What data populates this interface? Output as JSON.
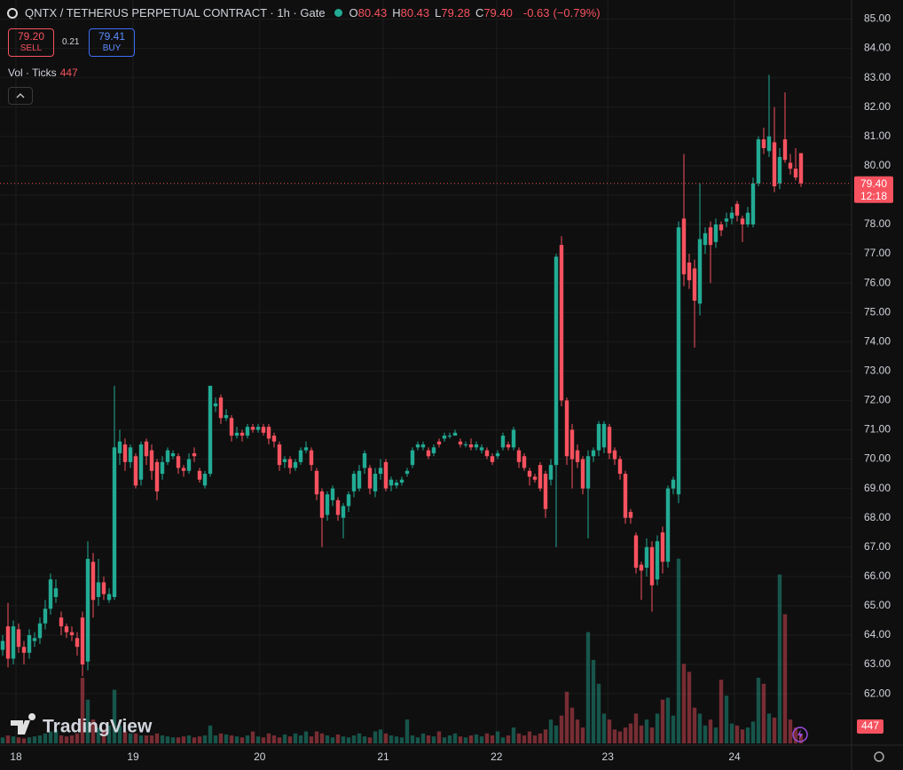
{
  "chart_data": {
    "type": "candlestick",
    "title": "QNTX / TETHERUS PERPETUAL CONTRACT · 1h · Gate",
    "legend_ohlc": [
      {
        "name": "O",
        "value": 80.43,
        "label": "80.43"
      },
      {
        "name": "H",
        "value": 80.43,
        "label": "80.43"
      },
      {
        "name": "L",
        "value": 79.28,
        "label": "79.28"
      },
      {
        "name": "C",
        "value": 79.4,
        "label": "79.40"
      }
    ],
    "change": {
      "value": -0.63,
      "label": "-0.63"
    },
    "change_pct": {
      "value": -0.79,
      "label": "(−0.79%)"
    },
    "sell": {
      "value": 79.2,
      "label": "79.20",
      "text": "SELL"
    },
    "spread": 0.21,
    "buy": {
      "value": 79.41,
      "text": "BUY"
    },
    "volume_title": "Vol · Ticks",
    "watermark": "TradingView",
    "last_price": {
      "value": 79.4,
      "label": "79.40",
      "countdown": "12:18"
    },
    "up_color": "#22ab94",
    "down_color": "#f7525f",
    "grid": true,
    "x": [
      -3,
      -2,
      -1,
      0,
      1,
      2,
      3,
      4,
      5,
      6,
      7,
      8,
      9,
      10,
      11,
      12,
      13,
      14,
      15,
      16,
      17,
      18,
      19,
      20,
      21,
      22,
      23,
      24,
      25,
      26,
      27,
      28,
      29,
      30,
      31,
      32,
      33,
      34,
      35,
      36,
      37,
      38,
      39,
      40,
      41,
      42,
      43,
      44,
      45,
      46,
      47,
      48,
      49,
      50,
      51,
      52,
      53,
      54,
      55,
      56,
      57,
      58,
      59,
      60,
      61,
      62,
      63,
      64,
      65,
      66,
      67,
      68,
      69,
      70,
      71,
      72,
      73,
      74,
      75,
      76,
      77,
      78,
      79,
      80,
      81,
      82,
      83,
      84,
      85,
      86,
      87,
      88,
      89,
      90,
      91,
      92,
      93,
      94,
      95,
      96,
      97,
      98,
      99,
      100,
      101,
      102,
      103,
      104,
      105,
      106,
      107,
      108,
      109,
      110,
      111,
      112,
      113,
      114,
      115,
      116,
      117,
      118,
      119,
      120,
      121,
      122,
      123,
      124,
      125,
      126,
      127,
      128,
      129,
      130,
      131,
      132,
      133,
      134,
      135,
      136,
      137,
      138,
      139,
      140,
      141,
      142,
      143,
      144,
      145,
      146,
      147
    ],
    "open": [
      63.5,
      64.3,
      63.2,
      64.2,
      63.6,
      63.4,
      63.8,
      63.9,
      64.4,
      64.9,
      65.3,
      64.6,
      64.3,
      64.1,
      63.9,
      64.6,
      63.1,
      66.5,
      65.3,
      65.8,
      65.2,
      65.3,
      70.2,
      70.5,
      69.9,
      70.1,
      69.3,
      70.6,
      70.3,
      69.9,
      69.5,
      69.9,
      70.1,
      70.1,
      69.7,
      69.6,
      70.2,
      69.6,
      69.1,
      69.5,
      71.8,
      72.1,
      71.4,
      71.4,
      70.8,
      70.9,
      70.8,
      71.1,
      71.0,
      71.1,
      71.1,
      70.8,
      70.5,
      69.9,
      70.0,
      69.7,
      69.9,
      70.3,
      70.3,
      69.6,
      68.9,
      68.1,
      68.6,
      68.6,
      68.0,
      68.4,
      68.9,
      69.0,
      69.7,
      69.7,
      68.9,
      69.5,
      69.9,
      69.1,
      69.1,
      69.2,
      69.5,
      69.8,
      70.4,
      70.4,
      70.3,
      70.2,
      70.6,
      70.7,
      70.8,
      70.8,
      70.6,
      70.5,
      70.5,
      70.4,
      70.3,
      70.3,
      70.1,
      70.1,
      70.4,
      70.5,
      70.4,
      70.3,
      70.1,
      69.6,
      69.4,
      69.8,
      69.5,
      69.3,
      69.8,
      77.3,
      72.0,
      71.0,
      70.3,
      70.0,
      69.0,
      70.1,
      70.3,
      70.4,
      71.1,
      70.3,
      70.0,
      69.5,
      68.2,
      67.4,
      66.4,
      66.3,
      67.0,
      65.9,
      67.5,
      66.5,
      69.0,
      68.8,
      78.2,
      76.7,
      76.5,
      75.3,
      77.3,
      77.9,
      77.4,
      78.0,
      78.1,
      78.2,
      78.7,
      78.2,
      78.0,
      78.0,
      79.4,
      80.9,
      80.5,
      80.8,
      79.4,
      80.9,
      80.1,
      79.9,
      80.43
    ],
    "high": [
      64.0,
      65.1,
      64.5,
      64.4,
      63.8,
      64.2,
      64.1,
      64.6,
      65.2,
      66.1,
      65.9,
      64.8,
      64.4,
      64.3,
      64.1,
      64.8,
      67.2,
      66.8,
      66.6,
      66.0,
      65.6,
      72.5,
      71.0,
      70.7,
      70.5,
      70.2,
      70.6,
      70.7,
      70.5,
      70.0,
      70.1,
      70.4,
      70.3,
      70.2,
      69.8,
      70.2,
      70.4,
      69.7,
      69.6,
      72.5,
      72.1,
      72.2,
      71.7,
      71.5,
      71.1,
      71.0,
      71.2,
      71.2,
      71.2,
      71.2,
      71.2,
      70.9,
      70.6,
      70.1,
      70.1,
      70.0,
      70.4,
      70.6,
      70.4,
      69.7,
      69.0,
      68.9,
      69.1,
      68.7,
      68.5,
      68.9,
      69.6,
      69.8,
      70.3,
      69.8,
      69.7,
      70.0,
      70.0,
      69.4,
      69.3,
      69.4,
      69.7,
      70.4,
      70.6,
      70.6,
      70.4,
      70.5,
      70.7,
      70.9,
      70.9,
      71.0,
      70.7,
      70.6,
      70.7,
      70.6,
      70.5,
      70.4,
      70.2,
      70.3,
      70.9,
      70.6,
      71.1,
      70.4,
      70.2,
      69.7,
      69.5,
      69.9,
      69.6,
      70.0,
      77.0,
      77.6,
      72.1,
      71.2,
      70.5,
      70.1,
      70.3,
      70.4,
      71.3,
      71.3,
      71.2,
      70.4,
      70.1,
      69.6,
      68.3,
      67.5,
      66.5,
      67.3,
      67.2,
      67.4,
      67.7,
      69.1,
      69.4,
      78.1,
      80.4,
      77.0,
      76.8,
      79.4,
      77.9,
      78.1,
      78.2,
      78.1,
      78.4,
      78.6,
      78.8,
      78.3,
      78.6,
      79.6,
      81.0,
      81.3,
      83.1,
      82.0,
      80.6,
      82.5,
      80.4,
      80.6,
      80.43
    ],
    "low": [
      63.3,
      62.9,
      63.0,
      63.4,
      63.0,
      63.2,
      63.6,
      63.7,
      64.2,
      64.7,
      65.1,
      64.0,
      63.9,
      63.8,
      63.3,
      62.6,
      62.8,
      64.6,
      65.0,
      65.2,
      65.1,
      65.2,
      69.8,
      69.6,
      69.7,
      69.0,
      69.1,
      69.8,
      69.3,
      68.6,
      69.3,
      69.8,
      70.0,
      69.5,
      69.4,
      69.5,
      69.9,
      69.2,
      69.0,
      69.4,
      71.6,
      71.2,
      71.3,
      70.6,
      70.7,
      70.6,
      70.7,
      70.9,
      70.9,
      70.8,
      70.5,
      70.4,
      69.6,
      69.7,
      69.5,
      69.6,
      69.8,
      70.2,
      69.6,
      68.6,
      67.0,
      67.9,
      68.4,
      67.9,
      67.3,
      68.2,
      68.7,
      68.9,
      69.5,
      68.8,
      68.7,
      69.3,
      68.9,
      68.9,
      69.0,
      69.1,
      69.4,
      69.7,
      70.3,
      70.3,
      70.0,
      70.1,
      70.4,
      70.6,
      70.7,
      70.8,
      70.4,
      70.4,
      70.3,
      70.3,
      70.2,
      70.0,
      69.8,
      70.0,
      70.3,
      70.3,
      70.3,
      69.7,
      69.6,
      69.1,
      69.2,
      68.9,
      68.0,
      69.1,
      67.0,
      71.8,
      69.8,
      69.0,
      69.7,
      68.8,
      67.3,
      69.9,
      70.1,
      70.2,
      70.0,
      69.8,
      69.3,
      67.8,
      67.8,
      66.1,
      65.2,
      66.0,
      64.8,
      65.7,
      66.1,
      66.3,
      68.8,
      68.5,
      75.9,
      75.8,
      73.8,
      74.9,
      77.0,
      76.0,
      77.2,
      77.6,
      77.9,
      78.0,
      78.1,
      77.4,
      77.9,
      77.9,
      79.3,
      80.4,
      80.3,
      79.1,
      79.2,
      80.1,
      79.7,
      79.5,
      79.28
    ],
    "close": [
      63.8,
      63.2,
      64.3,
      63.6,
      63.4,
      64.0,
      63.9,
      64.4,
      64.9,
      65.9,
      65.6,
      64.3,
      64.1,
      64.0,
      63.6,
      63.0,
      66.6,
      65.2,
      65.8,
      65.4,
      65.4,
      70.4,
      70.6,
      69.9,
      70.4,
      69.1,
      70.5,
      70.1,
      69.6,
      68.9,
      69.9,
      70.3,
      70.2,
      69.7,
      69.6,
      70.0,
      70.1,
      69.3,
      69.5,
      72.5,
      71.9,
      71.4,
      71.5,
      70.8,
      70.9,
      70.8,
      71.1,
      71.0,
      71.1,
      70.9,
      70.7,
      70.6,
      69.8,
      70.0,
      69.7,
      69.9,
      70.3,
      70.4,
      69.8,
      68.8,
      68.0,
      68.8,
      69.0,
      68.1,
      68.4,
      68.8,
      69.5,
      69.6,
      70.2,
      69.0,
      69.5,
      69.7,
      69.0,
      69.3,
      69.2,
      69.3,
      69.6,
      70.3,
      70.5,
      70.5,
      70.1,
      70.4,
      70.5,
      70.8,
      70.8,
      70.9,
      70.5,
      70.5,
      70.4,
      70.5,
      70.4,
      70.1,
      69.9,
      70.2,
      70.8,
      70.4,
      71.0,
      69.9,
      69.7,
      69.4,
      69.3,
      69.0,
      68.3,
      69.8,
      76.9,
      72.0,
      70.1,
      70.0,
      69.9,
      69.0,
      70.1,
      70.3,
      71.2,
      71.2,
      70.2,
      70.0,
      69.5,
      68.0,
      68.0,
      66.3,
      66.2,
      67.0,
      65.7,
      67.2,
      66.5,
      69.0,
      69.3,
      77.9,
      76.3,
      76.1,
      75.4,
      77.5,
      77.7,
      77.3,
      78.0,
      77.8,
      78.2,
      78.4,
      78.3,
      78.0,
      78.4,
      79.4,
      80.9,
      80.6,
      81.0,
      79.3,
      80.3,
      80.2,
      79.9,
      79.6,
      79.4
    ],
    "volume": [
      300,
      400,
      350,
      300,
      250,
      300,
      350,
      400,
      500,
      600,
      700,
      400,
      350,
      400,
      500,
      3300,
      2200,
      1200,
      800,
      700,
      900,
      2700,
      900,
      600,
      500,
      500,
      400,
      400,
      400,
      500,
      400,
      350,
      300,
      300,
      350,
      400,
      300,
      350,
      400,
      900,
      400,
      500,
      450,
      400,
      350,
      300,
      400,
      600,
      350,
      300,
      500,
      400,
      300,
      450,
      350,
      500,
      400,
      600,
      350,
      600,
      500,
      400,
      300,
      450,
      350,
      300,
      400,
      500,
      350,
      300,
      600,
      700,
      500,
      400,
      350,
      300,
      1200,
      400,
      300,
      500,
      400,
      350,
      600,
      300,
      400,
      500,
      350,
      300,
      400,
      450,
      350,
      500,
      400,
      600,
      300,
      400,
      800,
      500,
      400,
      600,
      400,
      500,
      700,
      1200,
      900,
      1400,
      2600,
      1800,
      1200,
      800,
      5600,
      4200,
      3000,
      1500,
      1200,
      700,
      600,
      800,
      1000,
      1500,
      900,
      1200,
      800,
      1500,
      2200,
      2300,
      1400,
      9300,
      4000,
      3600,
      1800,
      1500,
      900,
      1200,
      800,
      3200,
      2400,
      1000,
      900,
      700,
      800,
      1100,
      3300,
      3000,
      1500,
      1300,
      8500,
      6500,
      1200,
      800,
      447
    ],
    "volume_ylim": [
      0,
      10000
    ],
    "xlim": [
      -3.5,
      156.5
    ],
    "xticks": [
      {
        "value": -0.5,
        "label": "18"
      },
      {
        "value": 21.5,
        "label": "19"
      },
      {
        "value": 45.3,
        "label": "20"
      },
      {
        "value": 68.5,
        "label": "21"
      },
      {
        "value": 89.8,
        "label": "22"
      },
      {
        "value": 110.7,
        "label": "23"
      },
      {
        "value": 134.5,
        "label": "24"
      }
    ],
    "ylim": [
      60.25,
      85.65
    ],
    "yticks": [
      {
        "value": 62,
        "label": "62.00"
      },
      {
        "value": 63,
        "label": "63.00"
      },
      {
        "value": 64,
        "label": "64.00"
      },
      {
        "value": 65,
        "label": "65.00"
      },
      {
        "value": 66,
        "label": "66.00"
      },
      {
        "value": 67,
        "label": "67.00"
      },
      {
        "value": 68,
        "label": "68.00"
      },
      {
        "value": 69,
        "label": "69.00"
      },
      {
        "value": 70,
        "label": "70.00"
      },
      {
        "value": 71,
        "label": "71.00"
      },
      {
        "value": 72,
        "label": "72.00"
      },
      {
        "value": 73,
        "label": "73.00"
      },
      {
        "value": 74,
        "label": "74.00"
      },
      {
        "value": 75,
        "label": "75.00"
      },
      {
        "value": 76,
        "label": "76.00"
      },
      {
        "value": 77,
        "label": "77.00"
      },
      {
        "value": 78,
        "label": "78.00"
      },
      {
        "value": 79,
        "label": "79.00"
      },
      {
        "value": 80,
        "label": "80.00"
      },
      {
        "value": 81,
        "label": "81.00"
      },
      {
        "value": 82,
        "label": "82.00"
      },
      {
        "value": 83,
        "label": "83.00"
      },
      {
        "value": 84,
        "label": "84.00"
      },
      {
        "value": 85,
        "label": "85.00"
      }
    ]
  }
}
